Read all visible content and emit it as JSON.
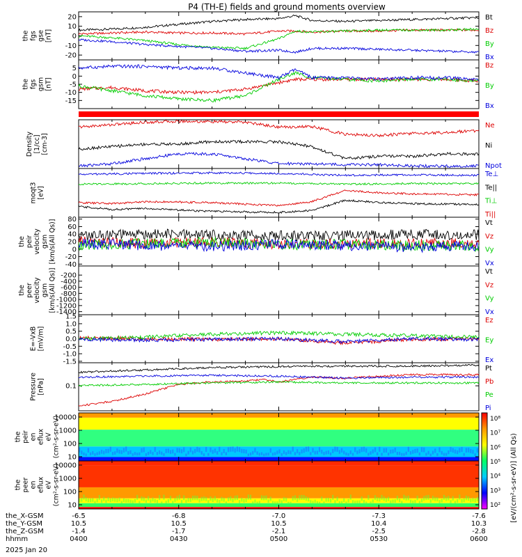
{
  "title": "P4 (TH-E) fields and ground moments overview",
  "date_label": "2025 Jan 20",
  "colors": {
    "black": "#000000",
    "red": "#dd0000",
    "green": "#00cc00",
    "blue": "#0000dd"
  },
  "orbit_rows": [
    {
      "label": "the_X-GSM",
      "values": [
        "-6.5",
        "-6.8",
        "-7.0",
        "-7.3",
        "-7.6"
      ]
    },
    {
      "label": "the_Y-GSM",
      "values": [
        "10.5",
        "10.5",
        "10.5",
        "10.4",
        "10.3"
      ]
    },
    {
      "label": "the_Z-GSM",
      "values": [
        "-1.4",
        "-1.7",
        "-2.1",
        "-2.5",
        "-2.8"
      ]
    },
    {
      "label": "hhmm",
      "values": [
        "0400",
        "0430",
        "0500",
        "0530",
        "0600"
      ]
    }
  ],
  "colorbar": {
    "label": "[eV/(cm²-s-sr-eV)] (All Qs)",
    "ticks": [
      "10⁸",
      "10⁷",
      "10⁶",
      "10⁵",
      "10⁴",
      "10³",
      "10²"
    ]
  },
  "chart_data": [
    {
      "type": "line",
      "id": "fgs_gse",
      "ylabel": [
        "the",
        "fgs",
        "gse",
        "[nT]"
      ],
      "ylim": [
        -25,
        25
      ],
      "yticks": [
        20,
        10,
        0,
        -10,
        -20
      ],
      "series": [
        {
          "name": "Bt",
          "color": "black",
          "x": [
            0,
            10,
            20,
            30,
            40,
            50,
            60,
            65,
            70,
            80,
            90,
            100,
            110,
            120
          ],
          "y": [
            6,
            7,
            9,
            12,
            15,
            17,
            18,
            21,
            16,
            15,
            16,
            17,
            18,
            19
          ]
        },
        {
          "name": "Bz",
          "color": "red",
          "x": [
            0,
            10,
            20,
            30,
            40,
            50,
            60,
            65,
            70,
            80,
            90,
            100,
            110,
            120
          ],
          "y": [
            2,
            3,
            4,
            3,
            3,
            2,
            5,
            5,
            4,
            5,
            5,
            6,
            6,
            6
          ]
        },
        {
          "name": "By",
          "color": "green",
          "x": [
            0,
            10,
            20,
            30,
            40,
            50,
            60,
            65,
            70,
            80,
            90,
            100,
            110,
            120
          ],
          "y": [
            0,
            -2,
            -5,
            -9,
            -12,
            -13,
            -3,
            5,
            4,
            5,
            6,
            6,
            6,
            7
          ]
        },
        {
          "name": "Bx",
          "color": "blue",
          "x": [
            0,
            10,
            20,
            30,
            40,
            50,
            60,
            65,
            70,
            80,
            90,
            100,
            110,
            120
          ],
          "y": [
            -4,
            -6,
            -9,
            -11,
            -13,
            -16,
            -15,
            -17,
            -13,
            -13,
            -14,
            -15,
            -16,
            -17
          ]
        }
      ]
    },
    {
      "type": "line",
      "id": "fgs_gsm",
      "ylabel": [
        "the",
        "fgs",
        "gsm",
        "[nT]"
      ],
      "ylim": [
        -20,
        10
      ],
      "yticks": [
        5,
        0,
        -5,
        -10,
        -15
      ],
      "series": [
        {
          "name": "Bz",
          "color": "red",
          "x": [
            0,
            10,
            20,
            30,
            40,
            50,
            60,
            65,
            70,
            80,
            90,
            100,
            110,
            120
          ],
          "y": [
            -8,
            -7,
            -9,
            -10,
            -10,
            -8,
            -4,
            -2,
            -2,
            -2,
            -2,
            -2,
            -2,
            -3
          ]
        },
        {
          "name": "By",
          "color": "green",
          "x": [
            0,
            10,
            20,
            30,
            40,
            50,
            60,
            65,
            70,
            80,
            90,
            100,
            110,
            120
          ],
          "y": [
            -6,
            -9,
            -12,
            -14,
            -15,
            -12,
            -2,
            2,
            -1,
            -2,
            -3,
            -2,
            -2,
            -3
          ]
        },
        {
          "name": "Bx",
          "color": "blue",
          "x": [
            0,
            10,
            20,
            30,
            40,
            50,
            60,
            65,
            70,
            80,
            90,
            100,
            110,
            120
          ],
          "y": [
            5,
            6,
            6,
            5,
            5,
            2,
            -1,
            4,
            -1,
            -1,
            -2,
            -1,
            -1,
            -2
          ]
        }
      ]
    },
    {
      "type": "bar",
      "id": "flag_bar",
      "ylabel": [],
      "series": []
    },
    {
      "type": "line",
      "id": "density",
      "ylabel": [
        "Density",
        "[1/cc]",
        "[cm-3]"
      ],
      "ylim": [
        0,
        1
      ],
      "yticks": [],
      "series": [
        {
          "name": "Ne",
          "color": "red",
          "x": [
            0,
            10,
            20,
            30,
            40,
            50,
            55,
            60,
            70,
            80,
            90,
            100,
            110,
            120
          ],
          "y": [
            0.85,
            0.9,
            0.95,
            0.97,
            0.96,
            0.95,
            0.9,
            0.85,
            0.86,
            0.7,
            0.68,
            0.72,
            0.74,
            0.78
          ]
        },
        {
          "name": "Ni",
          "color": "black",
          "x": [
            0,
            10,
            20,
            30,
            40,
            50,
            60,
            70,
            80,
            90,
            100,
            110,
            120
          ],
          "y": [
            0.4,
            0.45,
            0.5,
            0.5,
            0.55,
            0.55,
            0.55,
            0.45,
            0.2,
            0.25,
            0.25,
            0.3,
            0.3
          ]
        },
        {
          "name": "Npot",
          "color": "blue",
          "x": [
            0,
            10,
            20,
            30,
            40,
            50,
            60,
            70,
            80,
            90,
            100,
            110,
            120
          ],
          "y": [
            0.05,
            0.1,
            0.2,
            0.3,
            0.3,
            0.2,
            0.1,
            0.1,
            0.08,
            0.08,
            0.05,
            0.05,
            0.05
          ]
        }
      ]
    },
    {
      "type": "line",
      "id": "temperature",
      "ylabel": [
        "moqt3",
        "[eV]"
      ],
      "ylim": [
        0,
        1
      ],
      "yticks": [],
      "series": [
        {
          "name": "Te⊥",
          "color": "blue",
          "x": [
            0,
            20,
            40,
            60,
            80,
            100,
            120
          ],
          "y": [
            0.88,
            0.9,
            0.91,
            0.9,
            0.86,
            0.87,
            0.86
          ]
        },
        {
          "name": "Te||",
          "color": "black",
          "x": [
            0,
            10,
            20,
            40,
            60,
            70,
            80,
            90,
            100,
            120
          ],
          "y": [
            0.22,
            0.16,
            0.18,
            0.12,
            0.1,
            0.14,
            0.35,
            0.3,
            0.28,
            0.26
          ]
        },
        {
          "name": "Ti⊥",
          "color": "green",
          "x": [
            0,
            20,
            40,
            60,
            80,
            100,
            120
          ],
          "y": [
            0.68,
            0.69,
            0.7,
            0.7,
            0.68,
            0.69,
            0.69
          ]
        },
        {
          "name": "Ti||",
          "color": "red",
          "x": [
            0,
            10,
            20,
            40,
            60,
            70,
            80,
            90,
            100,
            120
          ],
          "y": [
            0.3,
            0.28,
            0.32,
            0.3,
            0.24,
            0.32,
            0.55,
            0.5,
            0.48,
            0.46
          ]
        }
      ]
    },
    {
      "type": "line",
      "id": "peir_velocity",
      "ylabel": [
        "the",
        "peir",
        "velocity",
        "gsm",
        "[km/s(All Qs)]"
      ],
      "ylim": [
        -45,
        85
      ],
      "yticks": [
        80,
        60,
        40,
        20,
        0,
        -20,
        -40
      ],
      "series": [
        {
          "name": "Vt",
          "color": "black",
          "x": [
            0,
            20,
            40,
            60,
            80,
            100,
            120
          ],
          "y": [
            35,
            40,
            38,
            36,
            37,
            39,
            38
          ]
        },
        {
          "name": "Vz",
          "color": "red",
          "x": [
            0,
            20,
            40,
            60,
            80,
            100,
            120
          ],
          "y": [
            20,
            15,
            18,
            12,
            15,
            14,
            16
          ]
        },
        {
          "name": "Vy",
          "color": "green",
          "x": [
            0,
            20,
            40,
            60,
            80,
            100,
            120
          ],
          "y": [
            10,
            15,
            18,
            12,
            12,
            10,
            8
          ]
        },
        {
          "name": "Vx",
          "color": "blue",
          "x": [
            0,
            20,
            40,
            60,
            80,
            100,
            120
          ],
          "y": [
            15,
            10,
            8,
            12,
            10,
            5,
            10
          ]
        }
      ]
    },
    {
      "type": "line",
      "id": "peer_velocity",
      "ylabel": [
        "the",
        "peer",
        "velocity",
        "gsm",
        "[km/s(All Qs)]"
      ],
      "ylim": [
        -1500,
        100
      ],
      "yticks": [
        -200,
        -400,
        -600,
        -800,
        -1000,
        -1200,
        -1400
      ],
      "series": [
        {
          "name": "Vt",
          "color": "black"
        },
        {
          "name": "Vz",
          "color": "red"
        },
        {
          "name": "Vy",
          "color": "green"
        },
        {
          "name": "Vx",
          "color": "blue"
        }
      ]
    },
    {
      "type": "line",
      "id": "efield",
      "ylabel": [
        "E=-VxB",
        "[mV/m]"
      ],
      "ylim": [
        -1.6,
        1.6
      ],
      "yticks": [
        1.5,
        1.0,
        0.5,
        0.0,
        -0.5,
        -1.0,
        -1.5
      ],
      "series": [
        {
          "name": "Ez",
          "color": "red",
          "x": [
            0,
            20,
            40,
            60,
            80,
            100,
            120
          ],
          "y": [
            0.05,
            0.0,
            -0.05,
            0.0,
            -0.3,
            -0.05,
            0.0
          ]
        },
        {
          "name": "Ey",
          "color": "green",
          "x": [
            0,
            20,
            40,
            60,
            80,
            100,
            120
          ],
          "y": [
            0.0,
            0.1,
            0.3,
            0.4,
            0.3,
            0.2,
            0.1
          ]
        },
        {
          "name": "Ex",
          "color": "blue",
          "x": [
            0,
            20,
            40,
            60,
            80,
            100,
            120
          ],
          "y": [
            -0.05,
            -0.1,
            -0.05,
            0.0,
            -0.2,
            0.0,
            -0.05
          ]
        }
      ]
    },
    {
      "type": "line",
      "id": "pressure",
      "ylabel": [
        "Pressure",
        "[nPa]"
      ],
      "ylim": [
        0,
        1
      ],
      "yticks": [
        "0.1"
      ],
      "series": [
        {
          "name": "Pt",
          "color": "black",
          "x": [
            0,
            20,
            40,
            60,
            80,
            100,
            120
          ],
          "y": [
            0.8,
            0.85,
            0.9,
            0.92,
            0.93,
            0.93,
            0.95
          ]
        },
        {
          "name": "Pb",
          "color": "red",
          "x": [
            0,
            10,
            20,
            30,
            40,
            50,
            55,
            60,
            70,
            80,
            90,
            100,
            120
          ],
          "y": [
            0.1,
            0.2,
            0.35,
            0.55,
            0.6,
            0.62,
            0.65,
            0.6,
            0.7,
            0.68,
            0.72,
            0.75,
            0.75
          ]
        },
        {
          "name": "Pe",
          "color": "green",
          "x": [
            0,
            20,
            40,
            60,
            80,
            100,
            120
          ],
          "y": [
            0.52,
            0.55,
            0.58,
            0.6,
            0.58,
            0.58,
            0.58
          ]
        },
        {
          "name": "Pi",
          "color": "blue",
          "x": [
            0,
            20,
            40,
            60,
            80,
            100,
            120
          ],
          "y": [
            0.7,
            0.72,
            0.74,
            0.72,
            0.68,
            0.7,
            0.7
          ]
        }
      ]
    },
    {
      "type": "heatmap",
      "id": "peir_spec",
      "ylabel": [
        "the",
        "peir",
        "en",
        "eflux",
        "eV",
        "(cm²-s-sr-eV)"
      ],
      "yticks": [
        "10000",
        "1000",
        "100",
        "10"
      ],
      "bands": [
        [
          "#ff9900",
          0.1
        ],
        [
          "#ffff00",
          0.35
        ],
        [
          "#30ff80",
          0.7
        ],
        [
          "#00c8ff",
          0.92
        ],
        [
          "#0010ff",
          1.0
        ]
      ]
    },
    {
      "type": "heatmap",
      "id": "peer_spec",
      "ylabel": [
        "the",
        "peer",
        "en",
        "eflux",
        "eV",
        "(cm²-s-sr-eV)"
      ],
      "yticks": [
        "10000",
        "1000",
        "100",
        "10"
      ],
      "bands": [
        [
          "#ff2a00",
          0.1
        ],
        [
          "#ff3300",
          0.55
        ],
        [
          "#ff9900",
          0.78
        ],
        [
          "#ffff00",
          0.88
        ],
        [
          "#30ff60",
          0.96
        ],
        [
          "#ff0000",
          1.0
        ]
      ]
    }
  ]
}
